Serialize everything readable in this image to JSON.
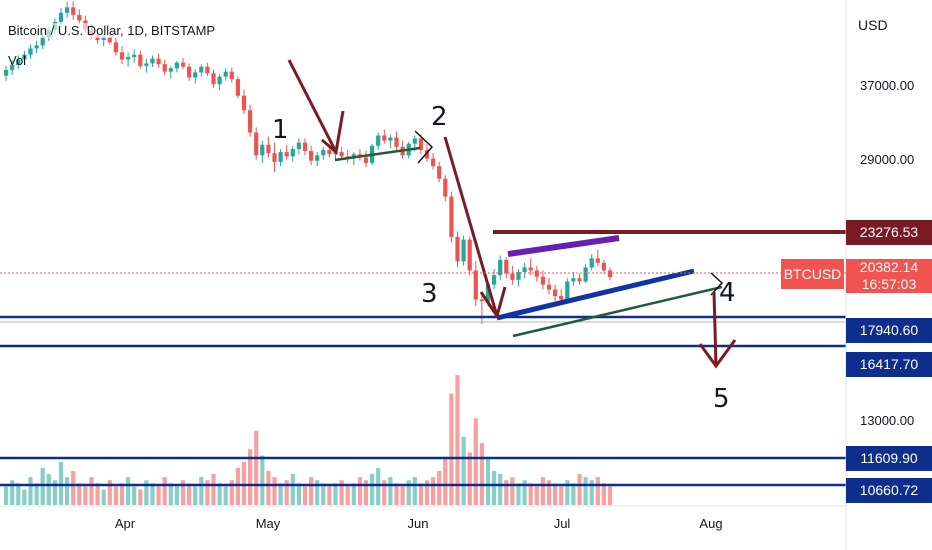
{
  "header": {
    "title": "Bitcoin / U.S. Dollar, 1D, BITSTAMP",
    "volume_label": "Vol"
  },
  "axis": {
    "currency": "USD",
    "price_ticks": [
      "37000.00",
      "29000.00",
      "13000.00"
    ],
    "date_ticks": [
      "Apr",
      "May",
      "Jun",
      "Jul",
      "Aug"
    ]
  },
  "price_badges": {
    "last_price": "20382.14",
    "countdown": "16:57:03",
    "symbol": "BTCUSD",
    "levels": [
      "23276.53",
      "17940.60",
      "16417.70",
      "11609.90",
      "10660.72"
    ]
  },
  "annotations": [
    "1",
    "2",
    "3",
    "4",
    "5"
  ],
  "colors": {
    "up": "#26a69a",
    "down": "#ef5350",
    "last_price": "#f05350",
    "level_blue": "#0d2e8c",
    "resistance": "#7a1a22",
    "arrow": "#7a1a22",
    "trend_blue": "#1034a6",
    "trend_purple": "#6a1fb0",
    "trend_green": "#1f5c3a"
  },
  "chart_data": {
    "type": "candlestick",
    "title": "Bitcoin / U.S. Dollar, 1D, BITSTAMP",
    "x_ticks": [
      "Apr",
      "May",
      "Jun",
      "Jul",
      "Aug"
    ],
    "y_ticks": [
      13000,
      29000,
      37000
    ],
    "y_scale": "log",
    "horizontal_levels": [
      23276.53,
      17940.6,
      16417.7,
      11609.9,
      10660.72
    ],
    "last_price": 20382.14,
    "series": [
      {
        "name": "Price",
        "values": [
          [
            38200,
            39400,
            37600,
            38900
          ],
          [
            38900,
            40100,
            38300,
            39500
          ],
          [
            39500,
            40700,
            39000,
            40200
          ],
          [
            40200,
            41300,
            39600,
            40800
          ],
          [
            40800,
            42100,
            40300,
            41600
          ],
          [
            41600,
            42600,
            41000,
            42000
          ],
          [
            42000,
            43600,
            41500,
            43100
          ],
          [
            43100,
            44500,
            42600,
            44100
          ],
          [
            44100,
            45700,
            43500,
            45200
          ],
          [
            45200,
            47200,
            44700,
            46500
          ],
          [
            46500,
            48100,
            45800,
            47300
          ],
          [
            47300,
            48200,
            45500,
            46200
          ],
          [
            46200,
            47000,
            44800,
            45400
          ],
          [
            45400,
            46100,
            43700,
            44100
          ],
          [
            44100,
            44900,
            42900,
            43300
          ],
          [
            43300,
            44200,
            42200,
            42700
          ],
          [
            42700,
            43600,
            41900,
            43100
          ],
          [
            43100,
            43800,
            42100,
            42400
          ],
          [
            42400,
            43000,
            40700,
            41100
          ],
          [
            41100,
            41900,
            39600,
            40200
          ],
          [
            40200,
            41100,
            39300,
            40500
          ],
          [
            40500,
            41500,
            39800,
            40800
          ],
          [
            40800,
            41300,
            39100,
            39400
          ],
          [
            39400,
            40300,
            38600,
            39700
          ],
          [
            39700,
            40700,
            39300,
            40300
          ],
          [
            40300,
            40900,
            39200,
            39600
          ],
          [
            39600,
            40100,
            38300,
            38700
          ],
          [
            38700,
            39400,
            37900,
            39100
          ],
          [
            39100,
            40000,
            38600,
            39800
          ],
          [
            39800,
            40400,
            39000,
            39300
          ],
          [
            39300,
            39700,
            37600,
            38000
          ],
          [
            38000,
            39000,
            37300,
            38600
          ],
          [
            38600,
            39600,
            38100,
            39300
          ],
          [
            39300,
            39800,
            38200,
            38500
          ],
          [
            38500,
            38900,
            36800,
            37200
          ],
          [
            37200,
            38400,
            36500,
            38100
          ],
          [
            38100,
            39100,
            37600,
            38700
          ],
          [
            38700,
            39200,
            37400,
            37800
          ],
          [
            37800,
            38100,
            35600,
            35900
          ],
          [
            35900,
            36600,
            33900,
            34300
          ],
          [
            34300,
            34900,
            31600,
            32000
          ],
          [
            32000,
            32500,
            29400,
            29800
          ],
          [
            29800,
            31200,
            29100,
            30800
          ],
          [
            30800,
            31600,
            29600,
            30000
          ],
          [
            30000,
            31000,
            28300,
            29200
          ],
          [
            29200,
            30400,
            28800,
            30100
          ],
          [
            30100,
            30800,
            29400,
            29700
          ],
          [
            29700,
            30700,
            29200,
            30400
          ],
          [
            30400,
            31400,
            29900,
            31000
          ],
          [
            31000,
            31400,
            29800,
            30200
          ],
          [
            30200,
            30700,
            28900,
            29300
          ],
          [
            29300,
            30100,
            28800,
            29800
          ],
          [
            29800,
            30600,
            29400,
            30300
          ],
          [
            30300,
            30800,
            29600,
            29900
          ],
          [
            29900,
            30500,
            29300,
            30100
          ],
          [
            30100,
            30600,
            29500,
            29700
          ],
          [
            29700,
            30300,
            29100,
            29500
          ],
          [
            29500,
            30100,
            28900,
            29900
          ],
          [
            29900,
            30400,
            29300,
            29600
          ],
          [
            29600,
            30200,
            28700,
            29100
          ],
          [
            29100,
            30900,
            28900,
            30700
          ],
          [
            30700,
            32000,
            30300,
            31700
          ],
          [
            31700,
            32300,
            30900,
            31200
          ],
          [
            31200,
            31800,
            30500,
            31500
          ],
          [
            31500,
            32100,
            30300,
            30600
          ],
          [
            30600,
            31200,
            29500,
            29800
          ],
          [
            29800,
            31100,
            29500,
            30900
          ],
          [
            30900,
            31700,
            30200,
            31400
          ],
          [
            31400,
            31800,
            29900,
            30300
          ],
          [
            30300,
            30800,
            29200,
            29500
          ],
          [
            29500,
            30000,
            28500,
            28800
          ],
          [
            28800,
            29200,
            27400,
            27700
          ],
          [
            27700,
            28000,
            25800,
            26200
          ],
          [
            26200,
            26600,
            22700,
            23100
          ],
          [
            23100,
            23500,
            21000,
            21400
          ],
          [
            21400,
            23200,
            21100,
            22900
          ],
          [
            22900,
            23100,
            20500,
            20800
          ],
          [
            20800,
            21400,
            18600,
            19000
          ],
          [
            19000,
            19300,
            17600,
            18900
          ],
          [
            18900,
            20100,
            18600,
            19900
          ],
          [
            19900,
            20900,
            19600,
            20500
          ],
          [
            20500,
            21800,
            20200,
            21500
          ],
          [
            21500,
            21700,
            20300,
            20600
          ],
          [
            20600,
            21100,
            19900,
            20200
          ],
          [
            20200,
            20900,
            19800,
            20700
          ],
          [
            20700,
            21300,
            20300,
            21000
          ],
          [
            21000,
            21600,
            20500,
            20800
          ],
          [
            20800,
            21100,
            20100,
            20400
          ],
          [
            20400,
            20800,
            19600,
            19900
          ],
          [
            19900,
            20300,
            19300,
            19600
          ],
          [
            19600,
            19900,
            18900,
            19200
          ],
          [
            19200,
            19600,
            18800,
            19000
          ],
          [
            19000,
            20300,
            18900,
            20100
          ],
          [
            20100,
            20700,
            19800,
            20300
          ],
          [
            20300,
            20600,
            19900,
            20100
          ],
          [
            20100,
            21200,
            20000,
            21000
          ],
          [
            21000,
            21900,
            20800,
            21600
          ],
          [
            21600,
            22200,
            21100,
            21300
          ],
          [
            21300,
            21500,
            20600,
            20800
          ],
          [
            20800,
            21000,
            20200,
            20382
          ]
        ]
      },
      {
        "name": "Vol",
        "values": [
          6,
          8,
          7,
          5,
          9,
          7,
          12,
          10,
          8,
          14,
          9,
          11,
          7,
          6,
          9,
          7,
          5,
          8,
          6,
          7,
          9,
          6,
          5,
          8,
          7,
          6,
          9,
          7,
          6,
          8,
          7,
          6,
          9,
          8,
          10,
          7,
          6,
          8,
          12,
          14,
          18,
          24,
          16,
          11,
          9,
          7,
          8,
          10,
          7,
          6,
          9,
          8,
          7,
          6,
          7,
          8,
          6,
          7,
          9,
          8,
          10,
          12,
          8,
          9,
          7,
          6,
          8,
          9,
          7,
          8,
          9,
          11,
          15,
          36,
          42,
          22,
          17,
          28,
          20,
          15,
          11,
          10,
          8,
          9,
          7,
          8,
          7,
          6,
          9,
          8,
          7,
          6,
          8,
          7,
          10,
          9,
          8,
          9,
          7,
          6
        ]
      }
    ]
  }
}
